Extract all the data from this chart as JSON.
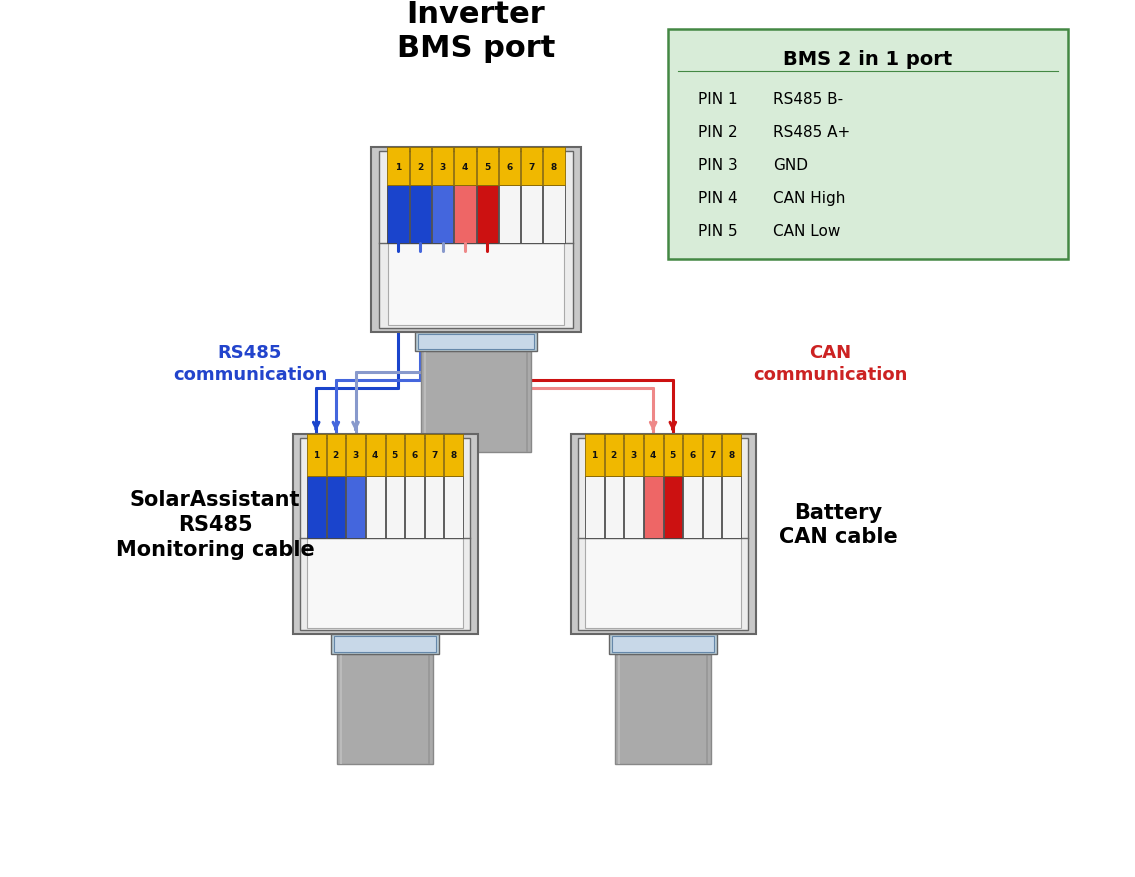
{
  "title_top": "Inverter\nBMS port",
  "title_left": "SolarAssistant\nRS485\nMonitoring cable",
  "title_right": "Battery\nCAN cable",
  "label_rs485": "RS485\ncommunication",
  "label_can": "CAN\ncommunication",
  "bms_box_title": "BMS 2 in 1 port",
  "bms_pins": [
    [
      "PIN 1",
      "RS485 B-"
    ],
    [
      "PIN 2",
      "RS485 A+"
    ],
    [
      "PIN 3",
      "GND"
    ],
    [
      "PIN 4",
      "CAN High"
    ],
    [
      "PIN 5",
      "CAN Low"
    ]
  ],
  "bg_color": "#ffffff",
  "connector_outer": "#c8c8c8",
  "connector_inner": "#e0e0e0",
  "connector_outline": "#666666",
  "pin_yellow": "#f0b800",
  "pin_blue": "#1a44cc",
  "pin_blue2": "#4466dd",
  "pin_red": "#cc1111",
  "pin_red2": "#ee6666",
  "pin_white": "#f5f5f5",
  "wire_blue1": "#1a44cc",
  "wire_blue2": "#4466dd",
  "wire_blue3": "#8899cc",
  "wire_red1": "#ee8888",
  "wire_red2": "#cc1111",
  "bms_box_bg": "#d8ecd8",
  "bms_box_border": "#448844"
}
